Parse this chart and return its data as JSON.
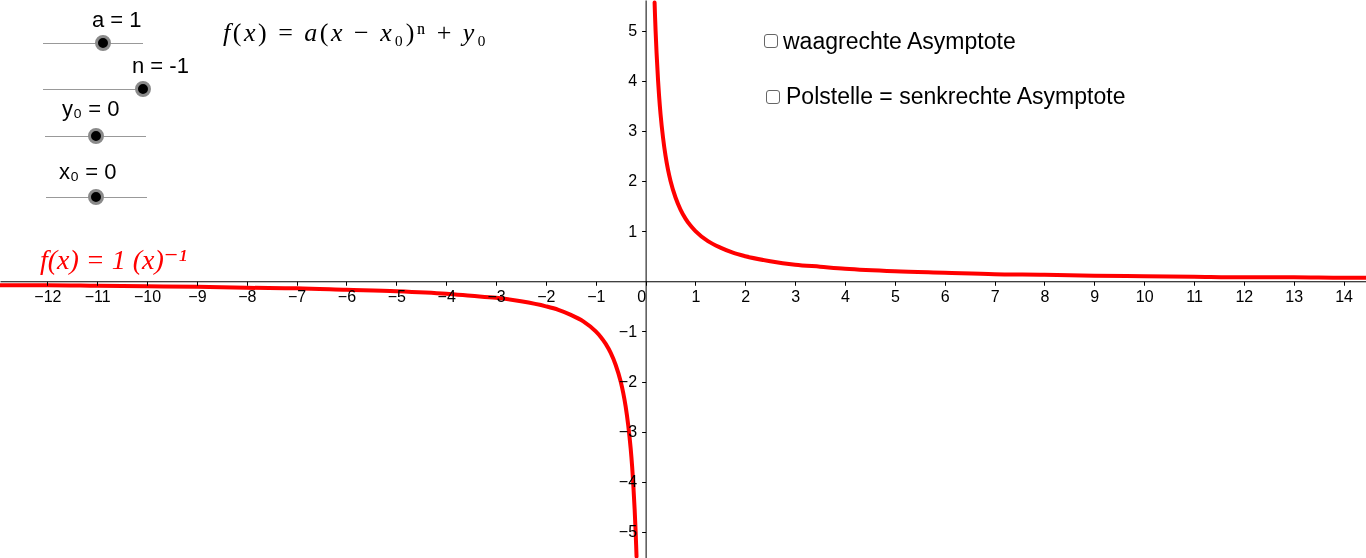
{
  "chart_data": {
    "type": "line",
    "title": "f(x) = a(x − x₀)ⁿ + y₀",
    "annotations": [
      "a = 1",
      "n = -1",
      "y₀ = 0",
      "x₀ = 0",
      "waagrechte Asymptote",
      "Polstelle = senkrechte Asymptote"
    ],
    "x": [
      -12.95,
      -12,
      -11,
      -10,
      -9,
      -8,
      -7,
      -6,
      -5,
      -4,
      -3.5,
      -3,
      -2.5,
      -2,
      -1.75,
      -1.5,
      -1.25,
      -1,
      -0.9,
      -0.8,
      -0.7,
      -0.6,
      -0.5,
      -0.45,
      -0.4,
      -0.35,
      -0.3,
      -0.27,
      -0.25,
      -0.22,
      -0.2,
      -0.19,
      -0.182,
      0,
      0.18,
      0.19,
      0.2,
      0.22,
      0.25,
      0.27,
      0.3,
      0.35,
      0.4,
      0.45,
      0.5,
      0.6,
      0.7,
      0.8,
      0.9,
      1,
      1.25,
      1.5,
      1.75,
      2,
      2.5,
      3,
      3.5,
      4,
      5,
      6,
      7,
      8,
      9,
      10,
      11,
      12,
      13,
      14,
      14.45
    ],
    "series": [
      {
        "name": "f(x) = 1 (x)⁻¹",
        "color": "#ff0000",
        "values": [
          -0.08,
          -0.08,
          -0.09,
          -0.1,
          -0.11,
          -0.13,
          -0.14,
          -0.17,
          -0.2,
          -0.25,
          -0.29,
          -0.33,
          -0.4,
          -0.5,
          -0.57,
          -0.67,
          -0.8,
          -1,
          -1.11,
          -1.25,
          -1.43,
          -1.67,
          -2,
          -2.22,
          -2.5,
          -2.86,
          -3.33,
          -3.7,
          -4,
          -4.55,
          -5,
          -5.26,
          -5.49,
          null,
          5.56,
          5.26,
          5,
          4.55,
          4,
          3.7,
          3.33,
          2.86,
          2.5,
          2.22,
          2,
          1.67,
          1.43,
          1.25,
          1.11,
          1,
          0.8,
          0.67,
          0.57,
          0.5,
          0.4,
          0.33,
          0.29,
          0.25,
          0.2,
          0.17,
          0.14,
          0.13,
          0.11,
          0.1,
          0.09,
          0.08,
          0.08,
          0.07,
          0.07
        ]
      }
    ],
    "xlim": [
      -12.95,
      14.45
    ],
    "ylim": [
      -5.52,
      5.61
    ],
    "xticks": [
      -12,
      -11,
      -10,
      -9,
      -8,
      -7,
      -6,
      -5,
      -4,
      -3,
      -2,
      -1,
      0,
      1,
      2,
      3,
      4,
      5,
      6,
      7,
      8,
      9,
      10,
      11,
      12,
      13,
      14
    ],
    "yticks": [
      -5,
      -4,
      -3,
      -2,
      -1,
      1,
      2,
      3,
      4,
      5
    ],
    "grid": false,
    "line_style": "solid"
  }
}
